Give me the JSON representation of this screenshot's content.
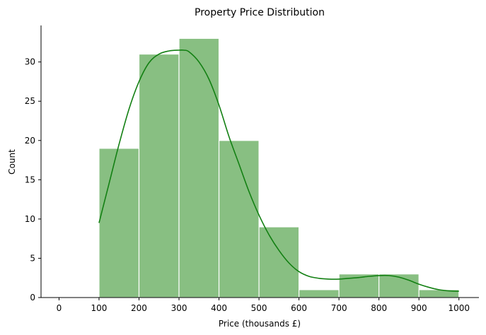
{
  "chart_data": {
    "type": "bar",
    "title": "Property Price Distribution",
    "xlabel": "Price (thousands £)",
    "ylabel": "Count",
    "xlim": [
      -45,
      1050
    ],
    "ylim": [
      0,
      34.65
    ],
    "xticks": [
      0,
      100,
      200,
      300,
      400,
      500,
      600,
      700,
      800,
      900,
      1000
    ],
    "yticks": [
      0,
      5,
      10,
      15,
      20,
      25,
      30
    ],
    "bins": [
      {
        "x0": 100,
        "x1": 200,
        "count": 19
      },
      {
        "x0": 200,
        "x1": 300,
        "count": 31
      },
      {
        "x0": 300,
        "x1": 400,
        "count": 33
      },
      {
        "x0": 400,
        "x1": 500,
        "count": 20
      },
      {
        "x0": 500,
        "x1": 600,
        "count": 9
      },
      {
        "x0": 600,
        "x1": 700,
        "count": 1
      },
      {
        "x0": 700,
        "x1": 800,
        "count": 3
      },
      {
        "x0": 800,
        "x1": 900,
        "count": 3
      },
      {
        "x0": 900,
        "x1": 1000,
        "count": 1
      }
    ],
    "kde": {
      "x": [
        100,
        125,
        150,
        175,
        200,
        225,
        250,
        275,
        300,
        312,
        325,
        350,
        375,
        400,
        425,
        450,
        475,
        500,
        525,
        550,
        575,
        600,
        625,
        650,
        675,
        700,
        725,
        750,
        775,
        800,
        825,
        850,
        875,
        900,
        925,
        950,
        975,
        1000
      ],
      "y": [
        9.5,
        14.5,
        19.5,
        24.0,
        27.5,
        29.9,
        31.0,
        31.4,
        31.5,
        31.5,
        31.3,
        30.0,
        27.8,
        24.5,
        20.5,
        17.0,
        13.5,
        10.5,
        8.0,
        6.0,
        4.4,
        3.3,
        2.7,
        2.45,
        2.35,
        2.35,
        2.45,
        2.55,
        2.7,
        2.8,
        2.8,
        2.6,
        2.2,
        1.7,
        1.3,
        1.0,
        0.85,
        0.8
      ]
    },
    "grid": false,
    "colors": {
      "bar_fill": "#88bf82",
      "bar_edge": "#ffffff",
      "kde_line": "#138013",
      "axis": "#000000"
    }
  }
}
